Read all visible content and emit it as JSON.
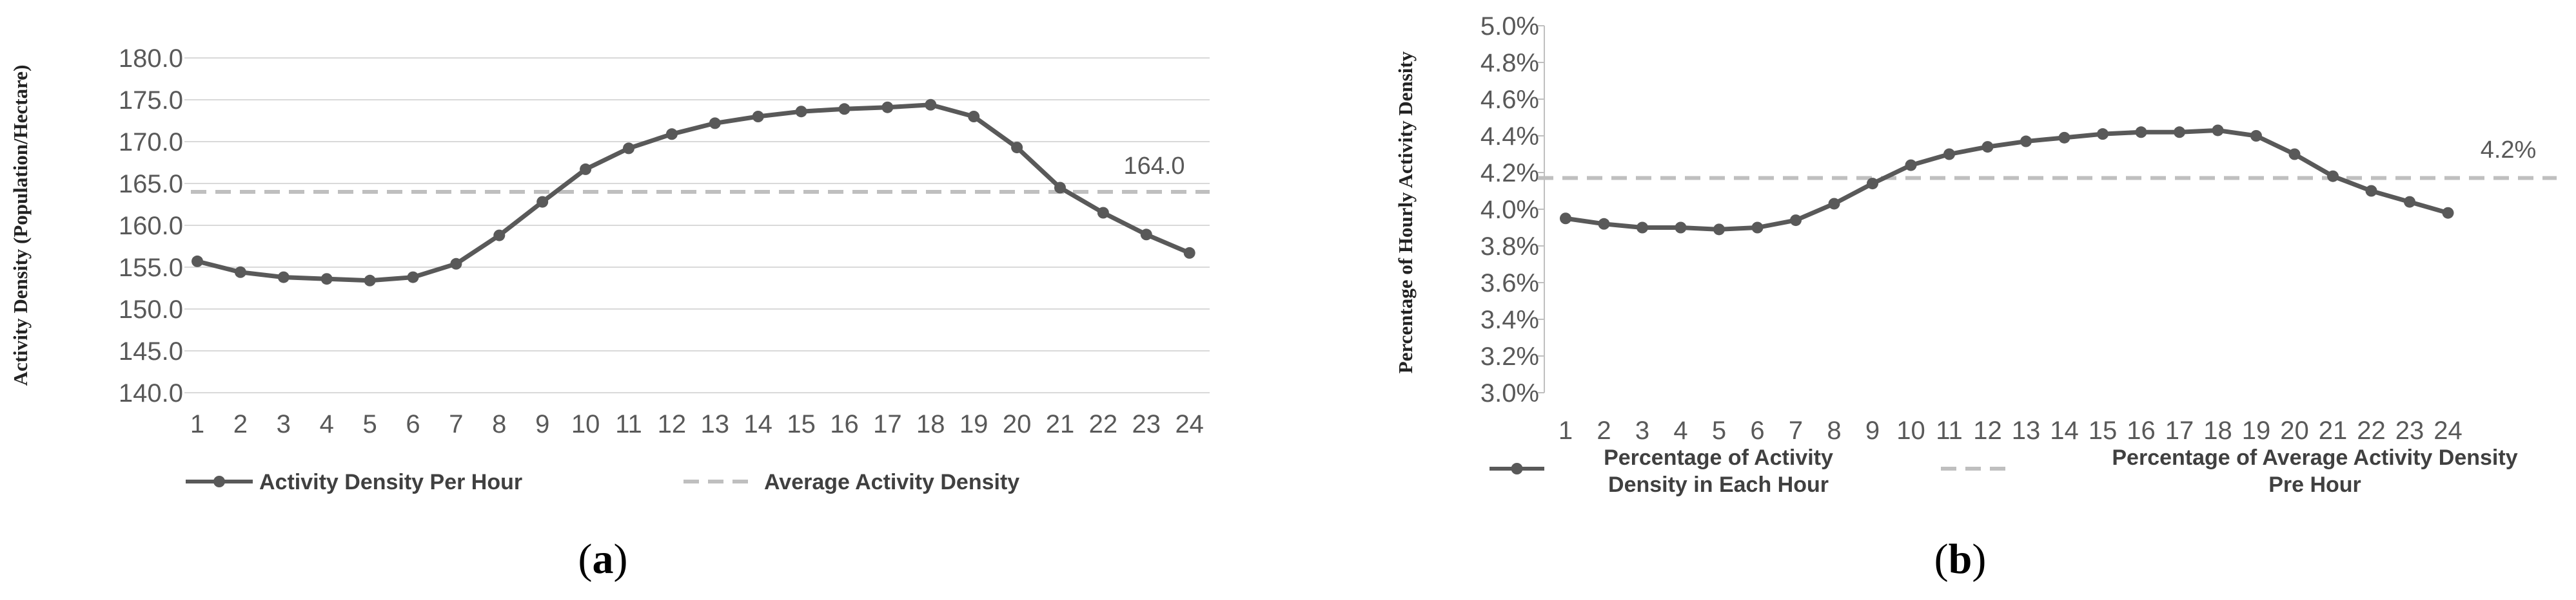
{
  "chart_data": [
    {
      "type": "line",
      "panel_label": [
        "(",
        "a",
        ")"
      ],
      "ylabel": "Activity Density (Population/Hectare)",
      "categories": [
        "1",
        "2",
        "3",
        "4",
        "5",
        "6",
        "7",
        "8",
        "9",
        "10",
        "11",
        "12",
        "13",
        "14",
        "15",
        "16",
        "17",
        "18",
        "19",
        "20",
        "21",
        "22",
        "23",
        "24"
      ],
      "y_ticks": [
        "140.0",
        "145.0",
        "150.0",
        "155.0",
        "160.0",
        "165.0",
        "170.0",
        "175.0",
        "180.0"
      ],
      "ylim": [
        140,
        180
      ],
      "grid": true,
      "series": [
        {
          "name": "Activity Density Per Hour",
          "values": [
            155.7,
            154.4,
            153.8,
            153.6,
            153.4,
            153.8,
            155.4,
            158.8,
            162.8,
            166.7,
            169.2,
            170.9,
            172.2,
            173.0,
            173.6,
            173.9,
            174.1,
            174.4,
            173.0,
            169.3,
            164.5,
            161.5,
            158.9,
            156.7
          ],
          "color": "#595959"
        },
        {
          "name": "Average Activity Density",
          "value": 164.0,
          "style": "dashed",
          "color": "#bfbfbf"
        }
      ],
      "annotation": "164.0",
      "legend_position": "bottom"
    },
    {
      "type": "line",
      "panel_label": [
        "(",
        "b",
        ")"
      ],
      "ylabel": "Percentage of Hourly Activity Density",
      "categories": [
        "1",
        "2",
        "3",
        "4",
        "5",
        "6",
        "7",
        "8",
        "9",
        "10",
        "11",
        "12",
        "13",
        "14",
        "15",
        "16",
        "17",
        "18",
        "19",
        "20",
        "21",
        "22",
        "23",
        "24"
      ],
      "y_ticks": [
        "3.0%",
        "3.2%",
        "3.4%",
        "3.6%",
        "3.8%",
        "4.0%",
        "4.2%",
        "4.4%",
        "4.6%",
        "4.8%",
        "5.0%"
      ],
      "ylim": [
        3.0,
        5.0
      ],
      "grid": false,
      "series": [
        {
          "name_lines": [
            "Percentage of Activity",
            "Density in Each Hour"
          ],
          "values": [
            3.95,
            3.92,
            3.9,
            3.9,
            3.89,
            3.9,
            3.94,
            4.03,
            4.14,
            4.24,
            4.3,
            4.34,
            4.37,
            4.39,
            4.41,
            4.42,
            4.42,
            4.43,
            4.4,
            4.3,
            4.18,
            4.1,
            4.04,
            3.98
          ],
          "color": "#595959"
        },
        {
          "name_lines": [
            "Percentage of Average Activity Density",
            "Pre Hour"
          ],
          "value": 4.17,
          "style": "dashed",
          "color": "#bfbfbf"
        }
      ],
      "annotation": "4.2%",
      "legend_position": "bottom"
    }
  ]
}
